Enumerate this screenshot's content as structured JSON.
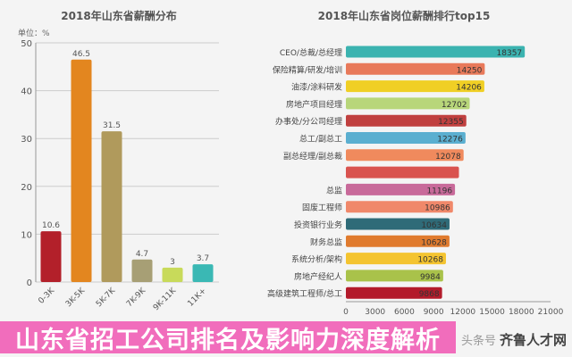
{
  "chart_data": [
    {
      "type": "bar",
      "title": "2018年山东省薪酬分布",
      "unit_label": "单位：%",
      "categories": [
        "0-3K",
        "3K-5K",
        "5K-7K",
        "7K-9K",
        "9K-11K",
        "11K+"
      ],
      "values": [
        10.6,
        46.5,
        31.5,
        4.7,
        3,
        3.7
      ],
      "colors": [
        "#b3202a",
        "#e3861f",
        "#b09a5c",
        "#a79f75",
        "#c8da5a",
        "#3ab8b4"
      ],
      "yticks": [
        0,
        10,
        20,
        30,
        40,
        50
      ],
      "ylim": [
        0,
        50
      ],
      "grid": true
    },
    {
      "type": "bar",
      "orientation": "horizontal",
      "title": "2018年山东省岗位薪酬排行top15",
      "categories": [
        "CEO/总裁/总经理",
        "保险精算/研发/培训",
        "油漆/涂料研发",
        "房地产项目经理",
        "办事处/分公司经理",
        "总工/副总工",
        "副总经理/副总裁",
        "",
        "总监",
        "固废工程师",
        "投资银行业务",
        "财务总监",
        "系统分析/架构",
        "房地产经纪人",
        "高级建筑工程师/总工"
      ],
      "values": [
        18357,
        14250,
        14206,
        12702,
        12355,
        12276,
        12078,
        null,
        11196,
        10986,
        10634,
        10628,
        10268,
        9984,
        9868
      ],
      "colors": [
        "#3bb3b0",
        "#e8795a",
        "#f0cf25",
        "#b8d67a",
        "#c0403f",
        "#5bafd0",
        "#f08a5d",
        "#d9534f",
        "#c86a9a",
        "#f0886a",
        "#2f6b78",
        "#e07b2e",
        "#f4c430",
        "#a9c24a",
        "#b31b2b"
      ],
      "xticks": [
        0,
        3000,
        6000,
        9000,
        12000,
        15000,
        18000,
        21000
      ],
      "xlim": [
        0,
        21000
      ]
    }
  ],
  "banner": "山东省招工公司排名及影响力深度解析",
  "watermark": {
    "source": "头条号",
    "brand": "齐鲁人才网"
  }
}
